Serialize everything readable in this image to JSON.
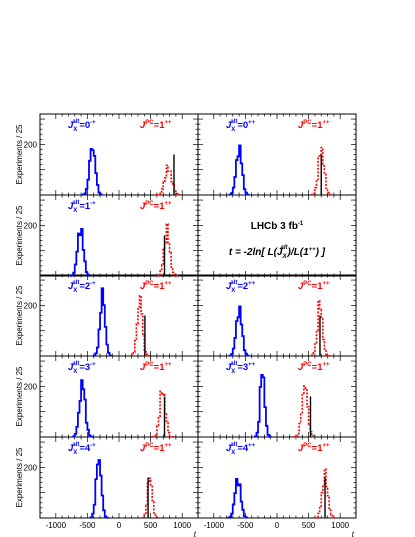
{
  "chart_data": {
    "type": "histogram-grid",
    "ylabel": "Experiments / 25",
    "xlabel": "t",
    "xlim": [
      -1250,
      1250
    ],
    "ylim": [
      0,
      320
    ],
    "xticks": [
      -1000,
      -500,
      0,
      500,
      1000
    ],
    "xtick_labels": [
      "-1000",
      "-500",
      "0",
      "500",
      "1000"
    ],
    "ytick_label": "200",
    "info": {
      "experiment": "LHCb 3 fb",
      "experiment_sup": "-1",
      "formula_prefix": "t = -2ln[ L(J",
      "formula_sub": "X",
      "formula_sup": "alt",
      "formula_mid": ")/L(1",
      "formula_sup2": "++",
      "formula_suffix": ") ]"
    },
    "colors": {
      "alt": "#0000ff",
      "jpc": "#ff0000",
      "obs": "#000000"
    },
    "jpc_label": {
      "base": "J",
      "sup": "PC",
      "value": "=1",
      "value_sup": "++"
    },
    "panels": [
      {
        "alt_label": "0",
        "alt_label_sup": "-+",
        "alt": {
          "mean": -420,
          "sigma": 45,
          "peak": 195
        },
        "jpc": {
          "mean": 780,
          "sigma": 55,
          "peak": 105
        },
        "observed": 870
      },
      {
        "alt_label": "0",
        "alt_label_sup": "++",
        "alt": {
          "mean": -600,
          "sigma": 45,
          "peak": 185
        },
        "jpc": {
          "mean": 700,
          "sigma": 45,
          "peak": 185
        },
        "observed": 700
      },
      {
        "alt_label": "1",
        "alt_label_sup": "-+",
        "alt": {
          "mean": -610,
          "sigma": 45,
          "peak": 190
        },
        "jpc": {
          "mean": 760,
          "sigma": 45,
          "peak": 175
        },
        "observed": 720
      },
      null,
      {
        "alt_label": "2",
        "alt_label_sup": "-+",
        "alt": {
          "mean": -260,
          "sigma": 40,
          "peak": 240
        },
        "jpc": {
          "mean": 330,
          "sigma": 40,
          "peak": 230
        },
        "observed": 410
      },
      {
        "alt_label": "2",
        "alt_label_sup": "++",
        "alt": {
          "mean": -600,
          "sigma": 45,
          "peak": 185
        },
        "jpc": {
          "mean": 680,
          "sigma": 40,
          "peak": 205
        },
        "observed": 680
      },
      {
        "alt_label": "3",
        "alt_label_sup": "-+",
        "alt": {
          "mean": -580,
          "sigma": 45,
          "peak": 210
        },
        "jpc": {
          "mean": 690,
          "sigma": 45,
          "peak": 185
        },
        "observed": 720
      },
      {
        "alt_label": "3",
        "alt_label_sup": "++",
        "alt": {
          "mean": -230,
          "sigma": 35,
          "peak": 265
        },
        "jpc": {
          "mean": 440,
          "sigma": 45,
          "peak": 205
        },
        "observed": 530
      },
      {
        "alt_label": "4",
        "alt_label_sup": "-+",
        "alt": {
          "mean": -320,
          "sigma": 40,
          "peak": 240
        },
        "jpc": {
          "mean": 490,
          "sigma": 35,
          "peak": 165
        },
        "observed": 460
      },
      {
        "alt_label": "4",
        "alt_label_sup": "++",
        "alt": {
          "mean": -620,
          "sigma": 45,
          "peak": 155
        },
        "jpc": {
          "mean": 760,
          "sigma": 45,
          "peak": 165
        },
        "observed": 760
      }
    ]
  }
}
